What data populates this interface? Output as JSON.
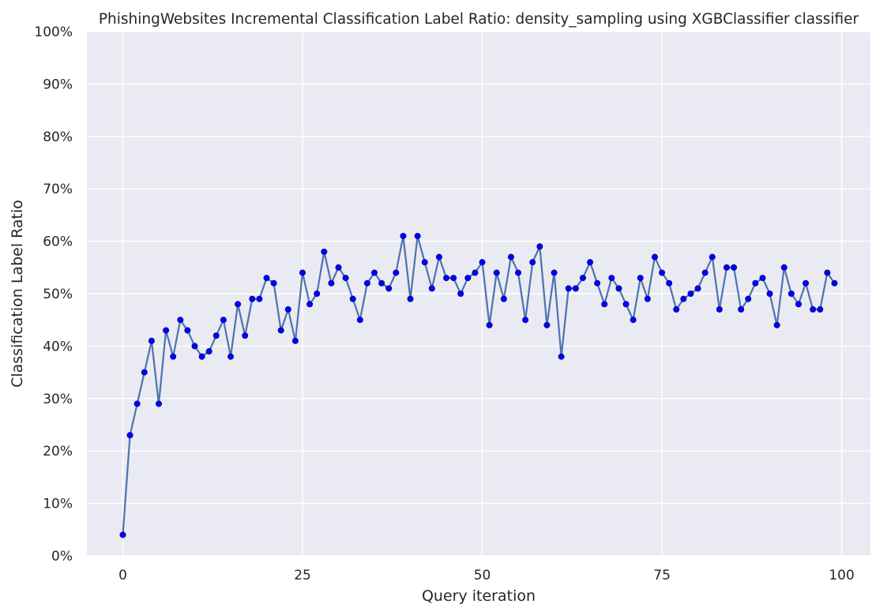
{
  "chart_data": {
    "type": "line",
    "title": "PhishingWebsites Incremental Classification Label Ratio: density_sampling using XGBClassifier classifier",
    "xlabel": "Query iteration",
    "ylabel": "Classification Label Ratio",
    "xlim": [
      -5,
      104
    ],
    "ylim": [
      0,
      1
    ],
    "xticks": [
      0,
      25,
      50,
      75,
      100
    ],
    "xtick_labels": [
      "0",
      "25",
      "50",
      "75",
      "100"
    ],
    "yticks": [
      0,
      0.1,
      0.2,
      0.3,
      0.4,
      0.5,
      0.6,
      0.7,
      0.8,
      0.9,
      1.0
    ],
    "ytick_labels": [
      "0%",
      "10%",
      "20%",
      "30%",
      "40%",
      "50%",
      "60%",
      "70%",
      "80%",
      "90%",
      "100%"
    ],
    "grid": true,
    "colors": {
      "background": "#eaeaf2",
      "grid": "#ffffff",
      "line": "#4c72b0",
      "marker": "#0000ff",
      "marker_edge": "#00008b"
    },
    "series": [
      {
        "x": [
          0,
          1,
          2,
          3,
          4,
          5,
          6,
          7,
          8,
          9,
          10,
          11,
          12,
          13,
          14,
          15,
          16,
          17,
          18,
          19,
          20,
          21,
          22,
          23,
          24,
          25,
          26,
          27,
          28,
          29,
          30,
          31,
          32,
          33,
          34,
          35,
          36,
          37,
          38,
          39,
          40,
          41,
          42,
          43,
          44,
          45,
          46,
          47,
          48,
          49,
          50,
          51,
          52,
          53,
          54,
          55,
          56,
          57,
          58,
          59,
          60,
          61,
          62,
          63,
          64,
          65,
          66,
          67,
          68,
          69,
          70,
          71,
          72,
          73,
          74,
          75,
          76,
          77,
          78,
          79,
          80,
          81,
          82,
          83,
          84,
          85,
          86,
          87,
          88,
          89,
          90,
          91,
          92,
          93,
          94,
          95,
          96,
          97,
          98,
          99
        ],
        "y": [
          0.04,
          0.23,
          0.29,
          0.35,
          0.41,
          0.29,
          0.43,
          0.38,
          0.45,
          0.43,
          0.4,
          0.38,
          0.39,
          0.42,
          0.45,
          0.38,
          0.48,
          0.42,
          0.49,
          0.49,
          0.53,
          0.52,
          0.43,
          0.47,
          0.41,
          0.54,
          0.48,
          0.5,
          0.58,
          0.52,
          0.55,
          0.53,
          0.49,
          0.45,
          0.52,
          0.54,
          0.52,
          0.51,
          0.54,
          0.61,
          0.49,
          0.61,
          0.56,
          0.51,
          0.57,
          0.53,
          0.53,
          0.5,
          0.53,
          0.54,
          0.56,
          0.44,
          0.54,
          0.49,
          0.57,
          0.54,
          0.45,
          0.56,
          0.59,
          0.44,
          0.54,
          0.38,
          0.51,
          0.51,
          0.53,
          0.56,
          0.52,
          0.48,
          0.53,
          0.51,
          0.48,
          0.45,
          0.53,
          0.49,
          0.57,
          0.54,
          0.52,
          0.47,
          0.49,
          0.5,
          0.51,
          0.54,
          0.57,
          0.47,
          0.55,
          0.55,
          0.47,
          0.49,
          0.52,
          0.53,
          0.5,
          0.44,
          0.55,
          0.5,
          0.48,
          0.52,
          0.47,
          0.47,
          0.54,
          0.52
        ]
      }
    ]
  }
}
